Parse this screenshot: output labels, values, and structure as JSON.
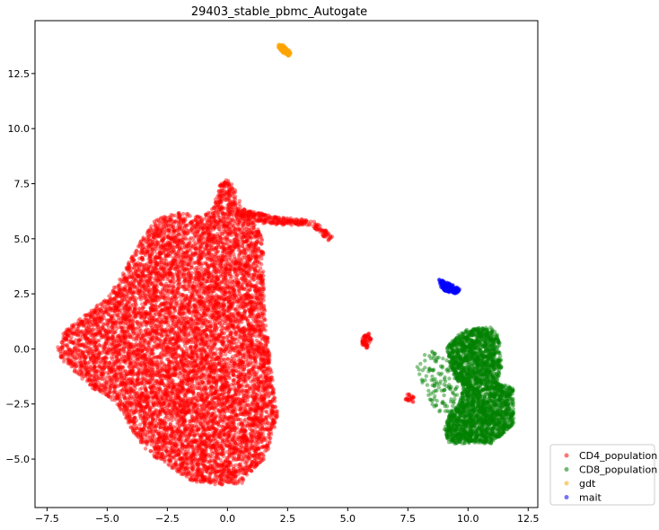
{
  "chart_data": {
    "type": "scatter",
    "title": "29403_stable_pbmc_Autogate",
    "xlabel": "",
    "ylabel": "",
    "xlim": [
      -8.0,
      12.9
    ],
    "ylim": [
      -7.2,
      14.9
    ],
    "xticks": [
      -7.5,
      -5.0,
      -2.5,
      0.0,
      2.5,
      5.0,
      7.5,
      10.0,
      12.5
    ],
    "xtick_labels": [
      "−7.5",
      "−5.0",
      "−2.5",
      "0.0",
      "2.5",
      "5.0",
      "7.5",
      "10.0",
      "12.5"
    ],
    "yticks": [
      -5.0,
      -2.5,
      0.0,
      2.5,
      5.0,
      7.5,
      10.0,
      12.5
    ],
    "ytick_labels": [
      "−5.0",
      "−2.5",
      "0.0",
      "2.5",
      "5.0",
      "7.5",
      "10.0",
      "12.5"
    ],
    "grid": false,
    "legend_position": "outside-bottom-right",
    "series": [
      {
        "name": "CD4_population",
        "color": "#ff0000",
        "regions": [
          {
            "polygon": [
              [
                -7.1,
                0.0
              ],
              [
                -6.8,
                0.8
              ],
              [
                -6.0,
                1.5
              ],
              [
                -5.0,
                2.3
              ],
              [
                -4.6,
                3.0
              ],
              [
                -3.6,
                4.9
              ],
              [
                -3.0,
                5.9
              ],
              [
                -2.0,
                6.2
              ],
              [
                -1.0,
                6.0
              ],
              [
                -0.6,
                6.5
              ],
              [
                -0.3,
                7.5
              ],
              [
                0.0,
                7.7
              ],
              [
                0.3,
                7.3
              ],
              [
                0.7,
                6.2
              ],
              [
                1.2,
                5.7
              ],
              [
                1.5,
                4.8
              ],
              [
                1.5,
                3.0
              ],
              [
                1.6,
                1.3
              ],
              [
                1.8,
                -0.8
              ],
              [
                2.1,
                -3.0
              ],
              [
                1.6,
                -5.0
              ],
              [
                1.2,
                -5.3
              ],
              [
                0.6,
                -6.1
              ],
              [
                -0.5,
                -6.2
              ],
              [
                -1.5,
                -6.0
              ],
              [
                -2.6,
                -5.2
              ],
              [
                -3.2,
                -4.8
              ],
              [
                -3.8,
                -4.0
              ],
              [
                -4.6,
                -2.5
              ],
              [
                -5.6,
                -1.8
              ],
              [
                -6.4,
                -1.0
              ],
              [
                -6.9,
                -0.5
              ]
            ],
            "count": 9500
          },
          {
            "polygon": [
              [
                0.5,
                6.4
              ],
              [
                2.0,
                6.0
              ],
              [
                3.0,
                5.9
              ],
              [
                3.6,
                5.8
              ],
              [
                4.4,
                5.1
              ],
              [
                4.2,
                4.9
              ],
              [
                3.5,
                5.6
              ],
              [
                2.5,
                5.6
              ],
              [
                1.5,
                5.7
              ],
              [
                0.6,
                5.9
              ]
            ],
            "count": 300
          },
          {
            "polygon": [
              [
                5.6,
                0.5
              ],
              [
                5.9,
                0.8
              ],
              [
                6.0,
                0.5
              ],
              [
                5.8,
                0.0
              ],
              [
                5.6,
                0.2
              ]
            ],
            "count": 60
          },
          {
            "polygon": [
              [
                7.5,
                -2.0
              ],
              [
                7.8,
                -2.2
              ],
              [
                7.7,
                -2.5
              ],
              [
                7.4,
                -2.3
              ]
            ],
            "count": 25
          }
        ]
      },
      {
        "name": "CD8_population",
        "color": "#008000",
        "regions": [
          {
            "polygon": [
              [
                9.4,
                0.5
              ],
              [
                10.0,
                0.9
              ],
              [
                11.0,
                1.0
              ],
              [
                11.3,
                0.5
              ],
              [
                11.4,
                -0.8
              ],
              [
                11.2,
                -1.5
              ],
              [
                11.9,
                -1.8
              ],
              [
                11.9,
                -3.4
              ],
              [
                11.0,
                -4.3
              ],
              [
                10.0,
                -4.3
              ],
              [
                9.2,
                -4.3
              ],
              [
                9.0,
                -3.6
              ],
              [
                9.2,
                -3.0
              ],
              [
                9.6,
                -2.5
              ],
              [
                9.8,
                -1.8
              ],
              [
                9.3,
                -1.0
              ],
              [
                9.1,
                0.0
              ]
            ],
            "count": 2800
          },
          {
            "polygon": [
              [
                7.8,
                -0.6
              ],
              [
                8.5,
                0.0
              ],
              [
                9.2,
                -0.3
              ],
              [
                9.6,
                -1.8
              ],
              [
                9.4,
                -2.8
              ],
              [
                9.0,
                -3.0
              ],
              [
                8.5,
                -2.6
              ],
              [
                8.2,
                -1.8
              ],
              [
                7.9,
                -1.2
              ]
            ],
            "count": 120
          }
        ]
      },
      {
        "name": "gdt",
        "color": "#ffa500",
        "regions": [
          {
            "polygon": [
              [
                2.1,
                13.85
              ],
              [
                2.3,
                13.8
              ],
              [
                2.65,
                13.45
              ],
              [
                2.55,
                13.3
              ],
              [
                2.3,
                13.45
              ],
              [
                2.1,
                13.7
              ]
            ],
            "count": 160
          }
        ]
      },
      {
        "name": "mait",
        "color": "#0000ff",
        "regions": [
          {
            "polygon": [
              [
                8.8,
                3.15
              ],
              [
                9.3,
                2.95
              ],
              [
                9.7,
                2.7
              ],
              [
                9.55,
                2.5
              ],
              [
                9.1,
                2.6
              ],
              [
                8.85,
                2.8
              ]
            ],
            "count": 170
          }
        ]
      }
    ]
  }
}
